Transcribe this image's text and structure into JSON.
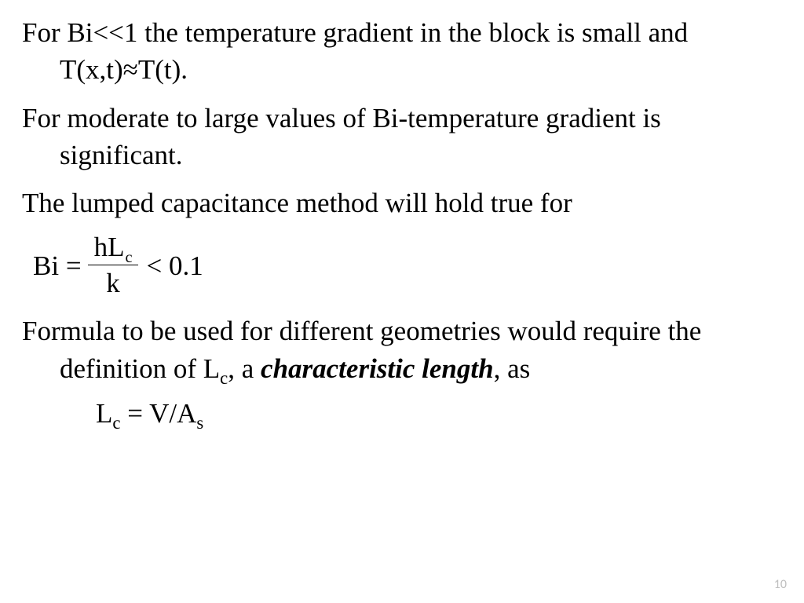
{
  "paragraphs": {
    "p1_a": "For Bi<<1 the temperature gradient in the block is small and T(x,t)",
    "p1_approx": "≈",
    "p1_b": "T(t).",
    "p2": "For moderate to large values of Bi-temperature gradient is significant.",
    "p3": "The lumped capacitance method will hold true for",
    "p4_a": "Formula to be used for different geometries would require the definition of L",
    "p4_sub": "c",
    "p4_b": ", a ",
    "p4_italic": "characteristic length",
    "p4_c": ", as"
  },
  "equation": {
    "lhs": "Bi =",
    "numerator_a": "hL",
    "numerator_sub": "c",
    "denominator": "k",
    "rhs": "< 0.1"
  },
  "lc_equation": {
    "a": "L",
    "sub1": "c",
    "b": " = V/A",
    "sub2": "s"
  },
  "page_number": "10",
  "style": {
    "body_font_size_pt": 26,
    "font_family": "Times New Roman",
    "text_color": "#000000",
    "background_color": "#ffffff",
    "page_number_color": "#bfbfbf",
    "page_number_font_family": "Calibri"
  }
}
